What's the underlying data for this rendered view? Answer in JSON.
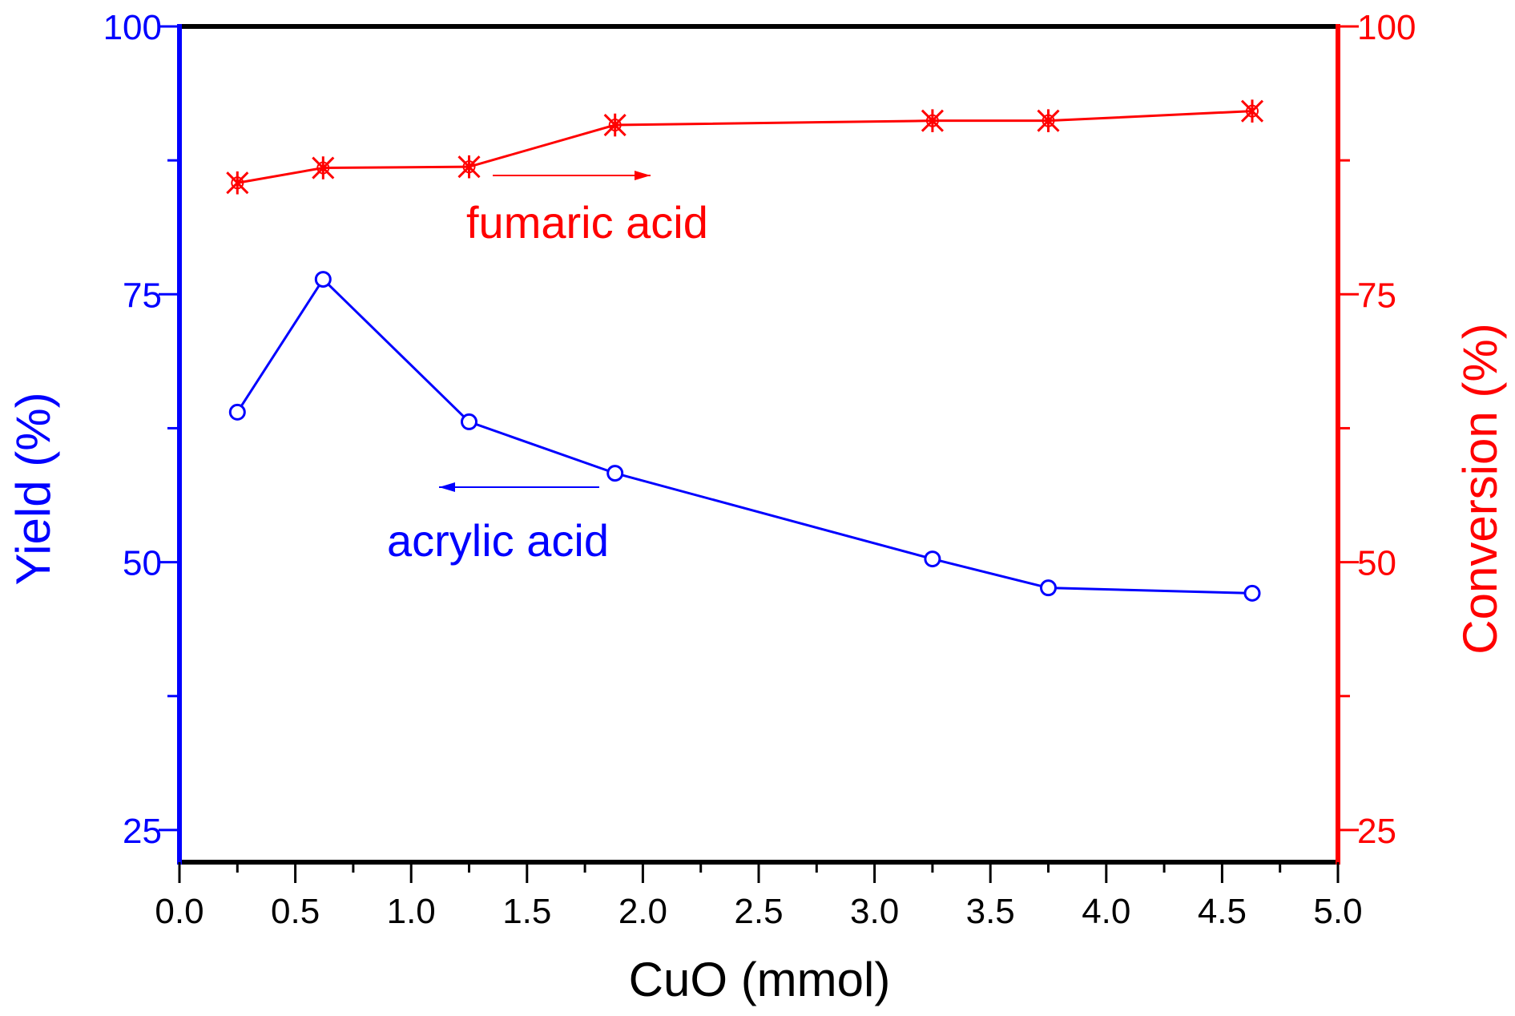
{
  "chart_data": {
    "type": "line",
    "xlabel": "CuO (mmol)",
    "ylabel_left": "Yield (%)",
    "ylabel_right": "Conversion (%)",
    "xlim": [
      0,
      5
    ],
    "ylim_left": [
      22,
      100
    ],
    "ylim_right": [
      22,
      100
    ],
    "x_ticks": [
      "0.0",
      "0.5",
      "1.0",
      "1.5",
      "2.0",
      "2.5",
      "3.0",
      "3.5",
      "4.0",
      "4.5",
      "5.0"
    ],
    "y_ticks_left": [
      "100",
      "75",
      "50",
      "25"
    ],
    "y_ticks_right": [
      "100",
      "75",
      "50",
      "25"
    ],
    "series": [
      {
        "name": "acrylic acid",
        "axis": "left",
        "color": "#0000ff",
        "marker": "open-circle",
        "x": [
          0.25,
          0.62,
          1.25,
          1.88,
          3.25,
          3.75,
          4.63
        ],
        "y": [
          64.0,
          76.4,
          63.1,
          58.3,
          50.3,
          47.6,
          47.1
        ]
      },
      {
        "name": "fumaric acid",
        "axis": "right",
        "color": "#ff0000",
        "marker": "asterisk-x",
        "x": [
          0.25,
          0.62,
          1.25,
          1.88,
          3.25,
          3.75,
          4.63
        ],
        "y": [
          85.4,
          86.8,
          86.9,
          90.8,
          91.2,
          91.2,
          92.1
        ]
      }
    ],
    "annotations": [
      {
        "text": "fumaric acid",
        "color": "#ff0000",
        "arrow": "right"
      },
      {
        "text": "acrylic acid",
        "color": "#0000ff",
        "arrow": "left"
      }
    ],
    "grid": false,
    "colors": {
      "left_axis": "#0000ff",
      "right_axis": "#ff0000",
      "frame": "#000000"
    }
  }
}
